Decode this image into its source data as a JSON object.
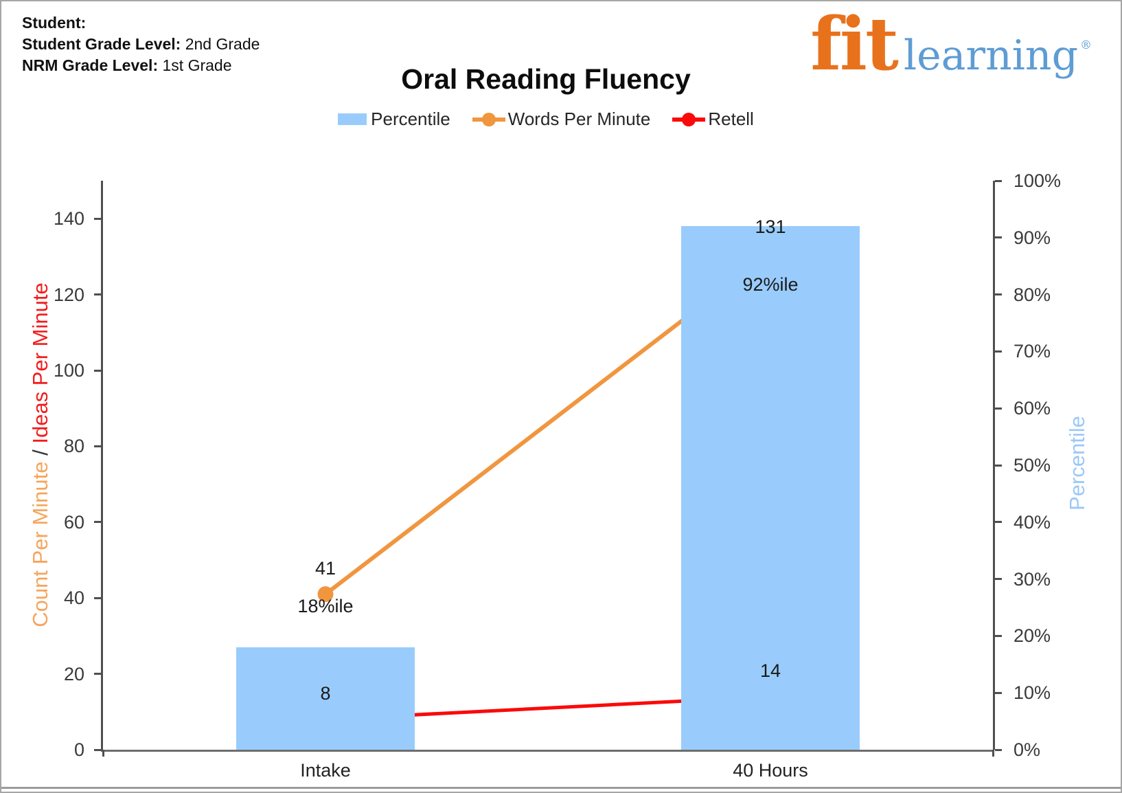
{
  "header": {
    "student_label": "Student:",
    "student_grade_label": "Student Grade Level:",
    "student_grade_value": "2nd Grade",
    "nrm_grade_label": "NRM Grade Level:",
    "nrm_grade_value": "1st Grade"
  },
  "logo": {
    "fit": "fit",
    "learning": "learning",
    "registered": "®",
    "fit_color": "#e8721c",
    "learning_color": "#5e9cd4"
  },
  "chart_data": {
    "type": "combo-bar-line",
    "title": "Oral Reading Fluency",
    "categories": [
      "Intake",
      "40 Hours"
    ],
    "series": [
      {
        "name": "Percentile",
        "type": "bar",
        "axis": "right",
        "values": [
          18,
          92
        ],
        "point_labels": [
          "18%ile",
          "92%ile"
        ],
        "color": "#99ccfc"
      },
      {
        "name": "Words Per Minute",
        "type": "line",
        "axis": "left",
        "values": [
          41,
          131
        ],
        "point_labels": [
          "41",
          "131"
        ],
        "color": "#f0963f"
      },
      {
        "name": "Retell",
        "type": "line",
        "axis": "left",
        "values": [
          8,
          14
        ],
        "point_labels": [
          "8",
          "14"
        ],
        "color": "#fa0a0a"
      }
    ],
    "left_axis": {
      "label_part1": "Count Per Minute",
      "label_separator": " / ",
      "label_part2": "Ideas Per Minute",
      "part1_color": "#f5a55c",
      "part2_color": "#f21d1d",
      "min": 0,
      "max": 150,
      "ticks": [
        0,
        20,
        40,
        60,
        80,
        100,
        120,
        140
      ]
    },
    "right_axis": {
      "label": "Percentile",
      "label_color": "#9cc8f7",
      "min": 0,
      "max": 100,
      "ticks": [
        0,
        10,
        20,
        30,
        40,
        50,
        60,
        70,
        80,
        90,
        100
      ],
      "tick_suffix": "%"
    },
    "grid": false,
    "legend_position": "top-center"
  }
}
